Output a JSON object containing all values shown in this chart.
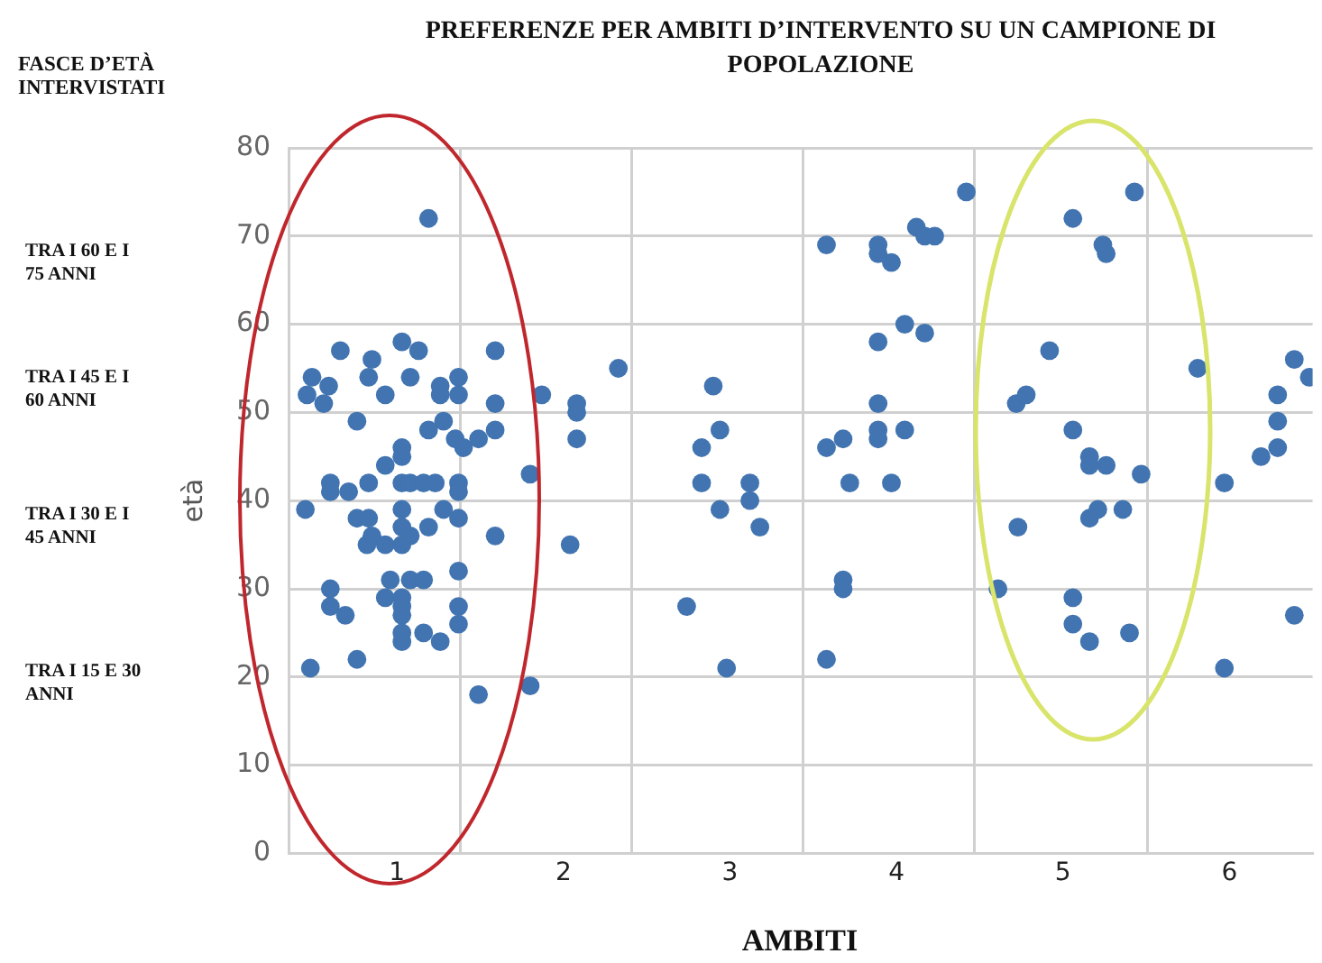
{
  "chart_data": {
    "type": "scatter",
    "title": "PREFERENZE PER AMBITI D’INTERVENTO SU UN CAMPIONE DI POPOLAZIONE",
    "xlabel": "AMBITI",
    "ylabel": "età",
    "annotations": [
      "FASCE D’ETÀ INTERVISTATI",
      "TRA I 60 E I 75 ANNI",
      "TRA I 45 E I 60 ANNI",
      "TRA I 30 E I 45 ANNI",
      "TRA I 15 E 30 ANNI"
    ],
    "xlim": [
      0.35,
      6.5
    ],
    "xticks": [
      {
        "value": 0.35,
        "label": null
      },
      1,
      {
        "value": 1.38,
        "label": null
      },
      2,
      {
        "value": 2.41,
        "label": null
      },
      3,
      {
        "value": 3.44,
        "label": null
      },
      4,
      {
        "value": 4.47,
        "label": null
      },
      5,
      {
        "value": 5.51,
        "label": null
      },
      6
    ],
    "ylim": [
      0,
      80
    ],
    "yticks": [
      0,
      10,
      20,
      30,
      40,
      50,
      60,
      70,
      80
    ],
    "grid": true,
    "legend": false,
    "marker": "circle",
    "series": [
      {
        "color": "#4174b0",
        "x": [
          1.19,
          0.66,
          1.03,
          1.13,
          0.85,
          0.49,
          0.59,
          0.46,
          0.56,
          0.83,
          0.93,
          1.08,
          1.26,
          1.26,
          1.37,
          1.37,
          1.59,
          1.59,
          0.76,
          1.28,
          1.19,
          1.59,
          1.35,
          1.4,
          1.49,
          1.03,
          1.03,
          0.93,
          1.8,
          0.6,
          0.6,
          0.71,
          0.83,
          1.03,
          1.08,
          1.16,
          1.23,
          1.37,
          1.37,
          0.45,
          1.03,
          1.28,
          1.37,
          0.76,
          0.83,
          0.85,
          0.82,
          0.93,
          1.03,
          1.03,
          1.08,
          1.19,
          1.59,
          2.04,
          0.6,
          0.6,
          0.69,
          0.96,
          0.93,
          1.03,
          1.03,
          1.03,
          1.08,
          1.16,
          1.37,
          1.37,
          1.37,
          1.03,
          1.03,
          1.16,
          1.26,
          0.48,
          0.76,
          1.49,
          1.8,
          2.33,
          1.87,
          2.08,
          2.08,
          2.08,
          2.9,
          2.94,
          2.83,
          2.83,
          3.12,
          3.12,
          2.94,
          3.18,
          2.74,
          2.98,
          4.42,
          5.06,
          3.58,
          3.89,
          3.89,
          3.97,
          4.12,
          4.17,
          4.23,
          5.24,
          5.26,
          4.05,
          3.89,
          4.17,
          4.92,
          4.72,
          4.78,
          3.89,
          3.58,
          3.68,
          3.89,
          3.89,
          4.05,
          3.72,
          3.97,
          5.06,
          5.16,
          5.16,
          5.26,
          4.73,
          5.16,
          5.21,
          3.68,
          3.68,
          4.61,
          5.06,
          5.06,
          5.16,
          3.58,
          5.43,
          5.47,
          5.36,
          5.4,
          5.81,
          5.97,
          6.19,
          6.29,
          6.29,
          6.29,
          6.39,
          6.48,
          6.39,
          5.97
        ],
        "values": [
          72,
          57,
          58,
          57,
          56,
          54,
          53,
          52,
          51,
          54,
          52,
          54,
          53,
          52,
          54,
          52,
          57,
          51,
          49,
          49,
          48,
          48,
          47,
          46,
          47,
          46,
          45,
          44,
          43,
          42,
          41,
          41,
          42,
          42,
          42,
          42,
          42,
          42,
          41,
          39,
          39,
          39,
          38,
          38,
          38,
          36,
          35,
          35,
          37,
          35,
          36,
          37,
          36,
          35,
          30,
          28,
          27,
          31,
          29,
          29,
          28,
          27,
          31,
          31,
          32,
          28,
          26,
          25,
          24,
          25,
          24,
          21,
          22,
          18,
          19,
          55,
          52,
          51,
          50,
          47,
          53,
          48,
          46,
          42,
          42,
          40,
          39,
          37,
          28,
          21,
          75,
          72,
          69,
          69,
          68,
          67,
          71,
          70,
          70,
          69,
          68,
          60,
          58,
          59,
          57,
          51,
          52,
          51,
          46,
          47,
          48,
          47,
          48,
          42,
          42,
          48,
          45,
          44,
          44,
          37,
          38,
          39,
          31,
          30,
          30,
          29,
          26,
          24,
          22,
          75,
          43,
          39,
          25,
          55,
          42,
          45,
          46,
          49,
          52,
          56,
          54,
          27,
          21
        ]
      }
    ]
  }
}
